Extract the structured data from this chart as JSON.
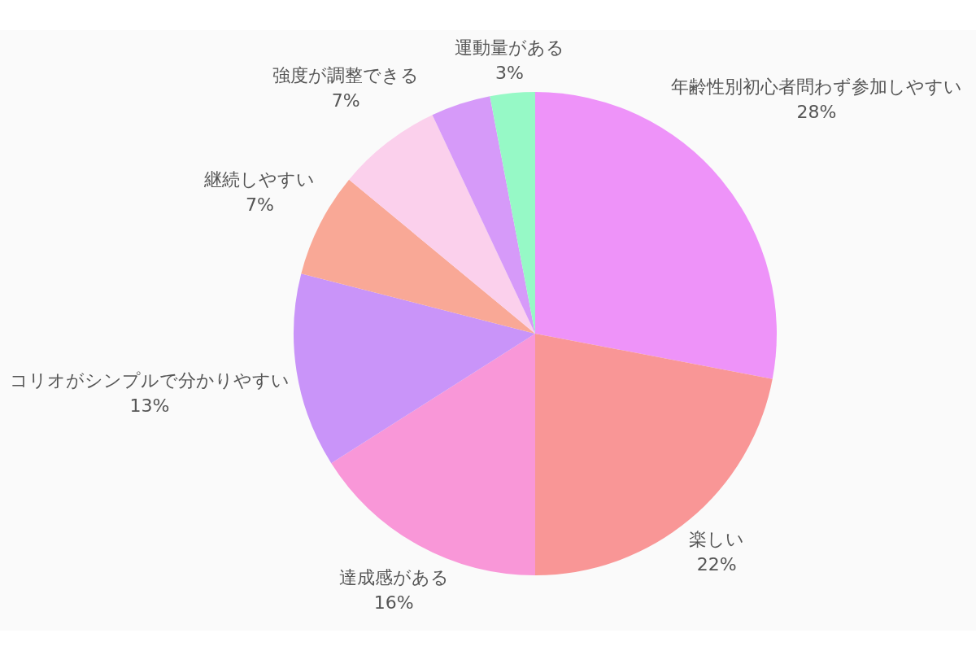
{
  "chart_data": {
    "type": "pie",
    "categories": [
      "年齢性別初心者問わず参加しやすい",
      "楽しい",
      "達成感がある",
      "コリオがシンプルで分かりやすい",
      "継続しやすい",
      "強度が調整できる",
      null,
      "運動量がある"
    ],
    "values": [
      28,
      22,
      16,
      13,
      7,
      7,
      4,
      3
    ],
    "colors": [
      "#ee93f9",
      "#f99696",
      "#f997d8",
      "#c994f9",
      "#f9a896",
      "#fbd0ec",
      "#d69af9",
      "#96f9c6"
    ],
    "value_labels": [
      "28%",
      "22%",
      "16%",
      "13%",
      "7%",
      "7%",
      null,
      "3%"
    ]
  }
}
